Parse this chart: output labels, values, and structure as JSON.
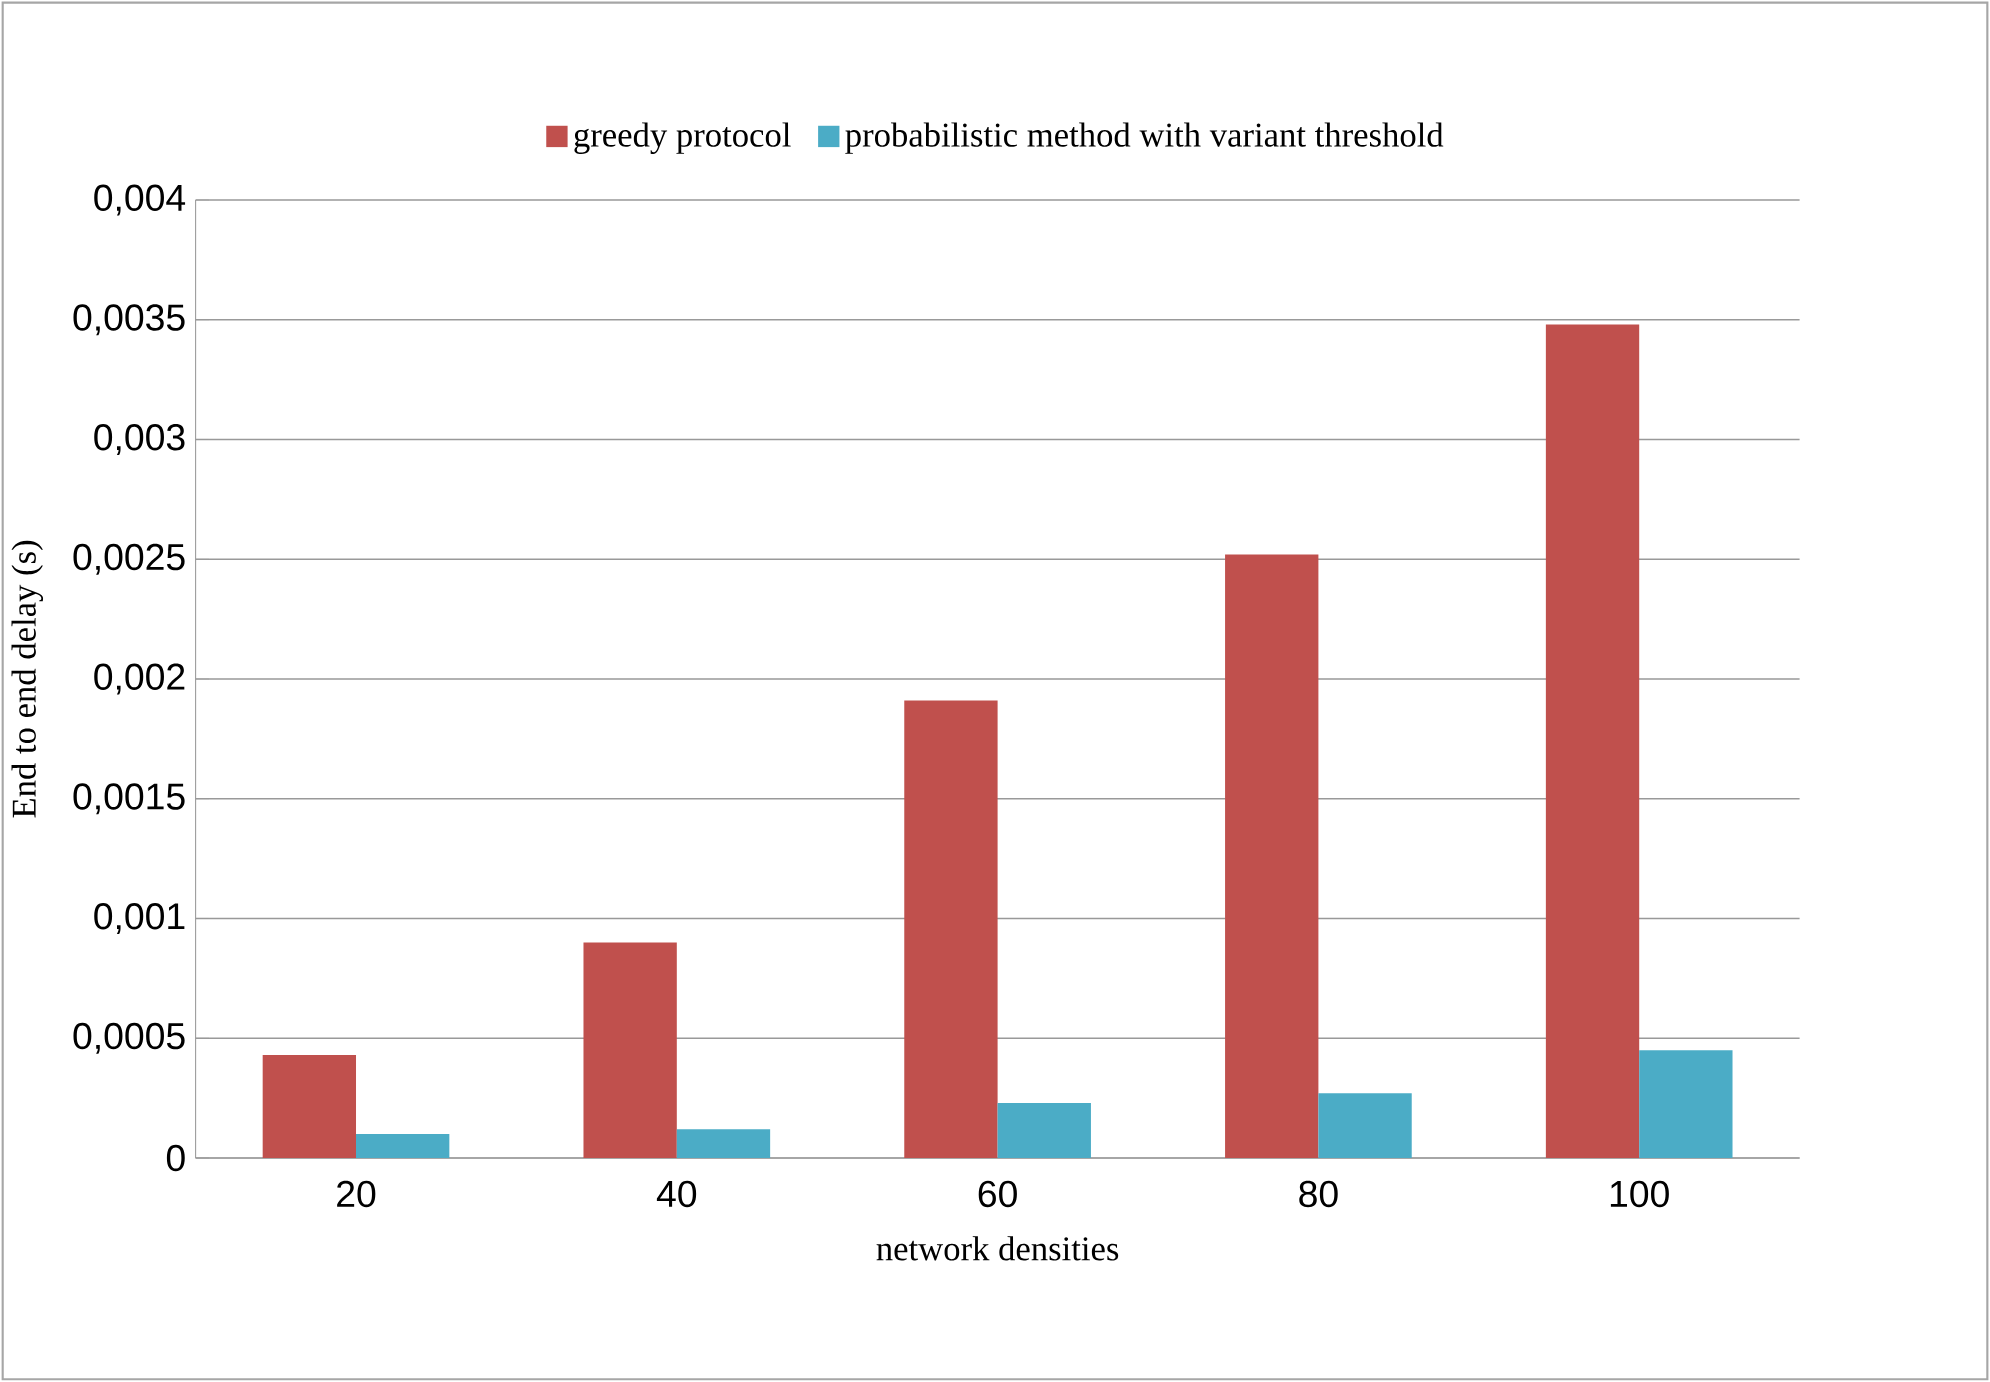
{
  "chart_data": {
    "type": "bar",
    "xlabel": "network densities",
    "ylabel": "End to end delay (s)",
    "categories": [
      "20",
      "40",
      "60",
      "80",
      "100"
    ],
    "series": [
      {
        "name": "greedy protocol",
        "color": "#c0504d",
        "values": [
          0.00043,
          0.0009,
          0.00191,
          0.00252,
          0.00348
        ]
      },
      {
        "name": "probabilistic method with variant threshold",
        "color": "#4bacc6",
        "values": [
          0.0001,
          0.00012,
          0.00023,
          0.00027,
          0.00045
        ]
      }
    ],
    "ylim": [
      0,
      0.004
    ],
    "yticks": [
      0,
      {
        "value": 0.0005,
        "label": "0,0005"
      },
      {
        "value": 0.001,
        "label": "0,001"
      },
      {
        "value": 0.0015,
        "label": "0,0015"
      },
      {
        "value": 0.002,
        "label": "0,002"
      },
      {
        "value": 0.0025,
        "label": "0,0025"
      },
      {
        "value": 0.003,
        "label": "0,003"
      },
      {
        "value": 0.0035,
        "label": "0,0035"
      },
      {
        "value": 0.004,
        "label": "0,004"
      }
    ],
    "grid": "y",
    "legend": "top"
  }
}
